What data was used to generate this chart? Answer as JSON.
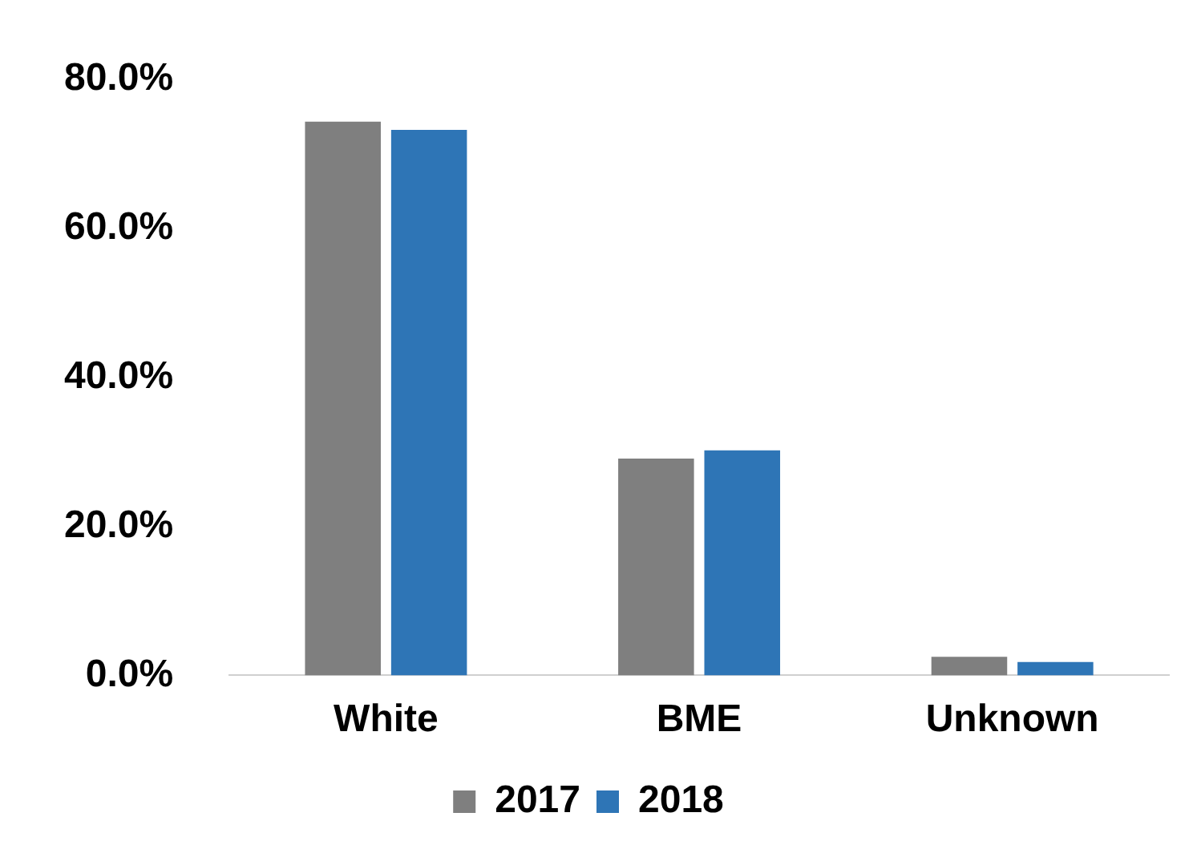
{
  "chart_data": {
    "type": "bar",
    "categories": [
      "White",
      "BME",
      "Unknown"
    ],
    "series": [
      {
        "name": "2017",
        "color": "#7f7f7f",
        "values": [
          74.3,
          29.1,
          2.5
        ]
      },
      {
        "name": "2018",
        "color": "#2e75b6",
        "values": [
          73.2,
          30.2,
          1.8
        ]
      }
    ],
    "ylim": [
      0,
      80
    ],
    "yticks": [
      {
        "value": 0,
        "label": "0.0%"
      },
      {
        "value": 20,
        "label": "20.0%"
      },
      {
        "value": 40,
        "label": "40.0%"
      },
      {
        "value": 60,
        "label": "60.0%"
      },
      {
        "value": 80,
        "label": "80.0%"
      }
    ],
    "grid": false,
    "legend": "bottom"
  }
}
